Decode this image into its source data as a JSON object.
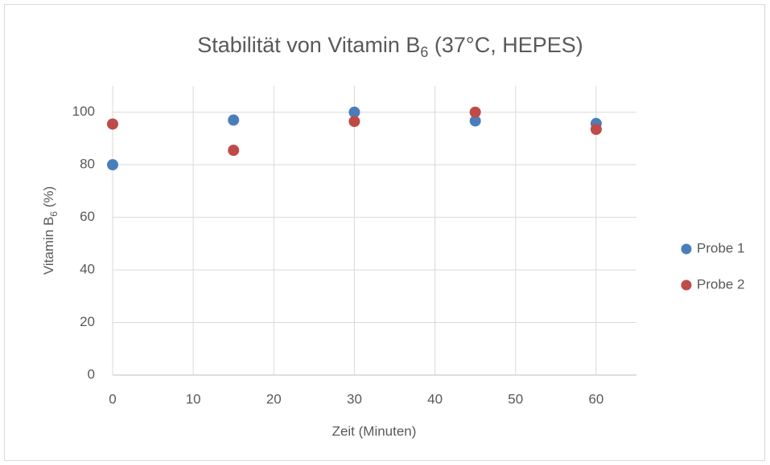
{
  "chart_data": {
    "type": "scatter",
    "title": [
      "Stabilität von Vitamin B",
      "6",
      " (37°C, HEPES)"
    ],
    "x_label": "Zeit (Minuten)",
    "y_label": [
      "Vitamin B",
      "6",
      " (%)"
    ],
    "x": [
      0,
      15,
      30,
      45,
      60
    ],
    "series": [
      {
        "name": "Probe 1",
        "color": "#4a7ebb",
        "values": [
          80,
          97,
          100,
          96.7,
          95.7
        ]
      },
      {
        "name": "Probe 2",
        "color": "#be4b48",
        "values": [
          95.5,
          85.5,
          96.5,
          100,
          93.5
        ]
      }
    ],
    "xlim": [
      0,
      65
    ],
    "xticks": [
      0,
      10,
      20,
      30,
      40,
      50,
      60
    ],
    "ylim": [
      0,
      110
    ],
    "yticks": [
      0,
      20,
      40,
      60,
      80,
      100
    ],
    "grid": true,
    "legend": "right"
  }
}
